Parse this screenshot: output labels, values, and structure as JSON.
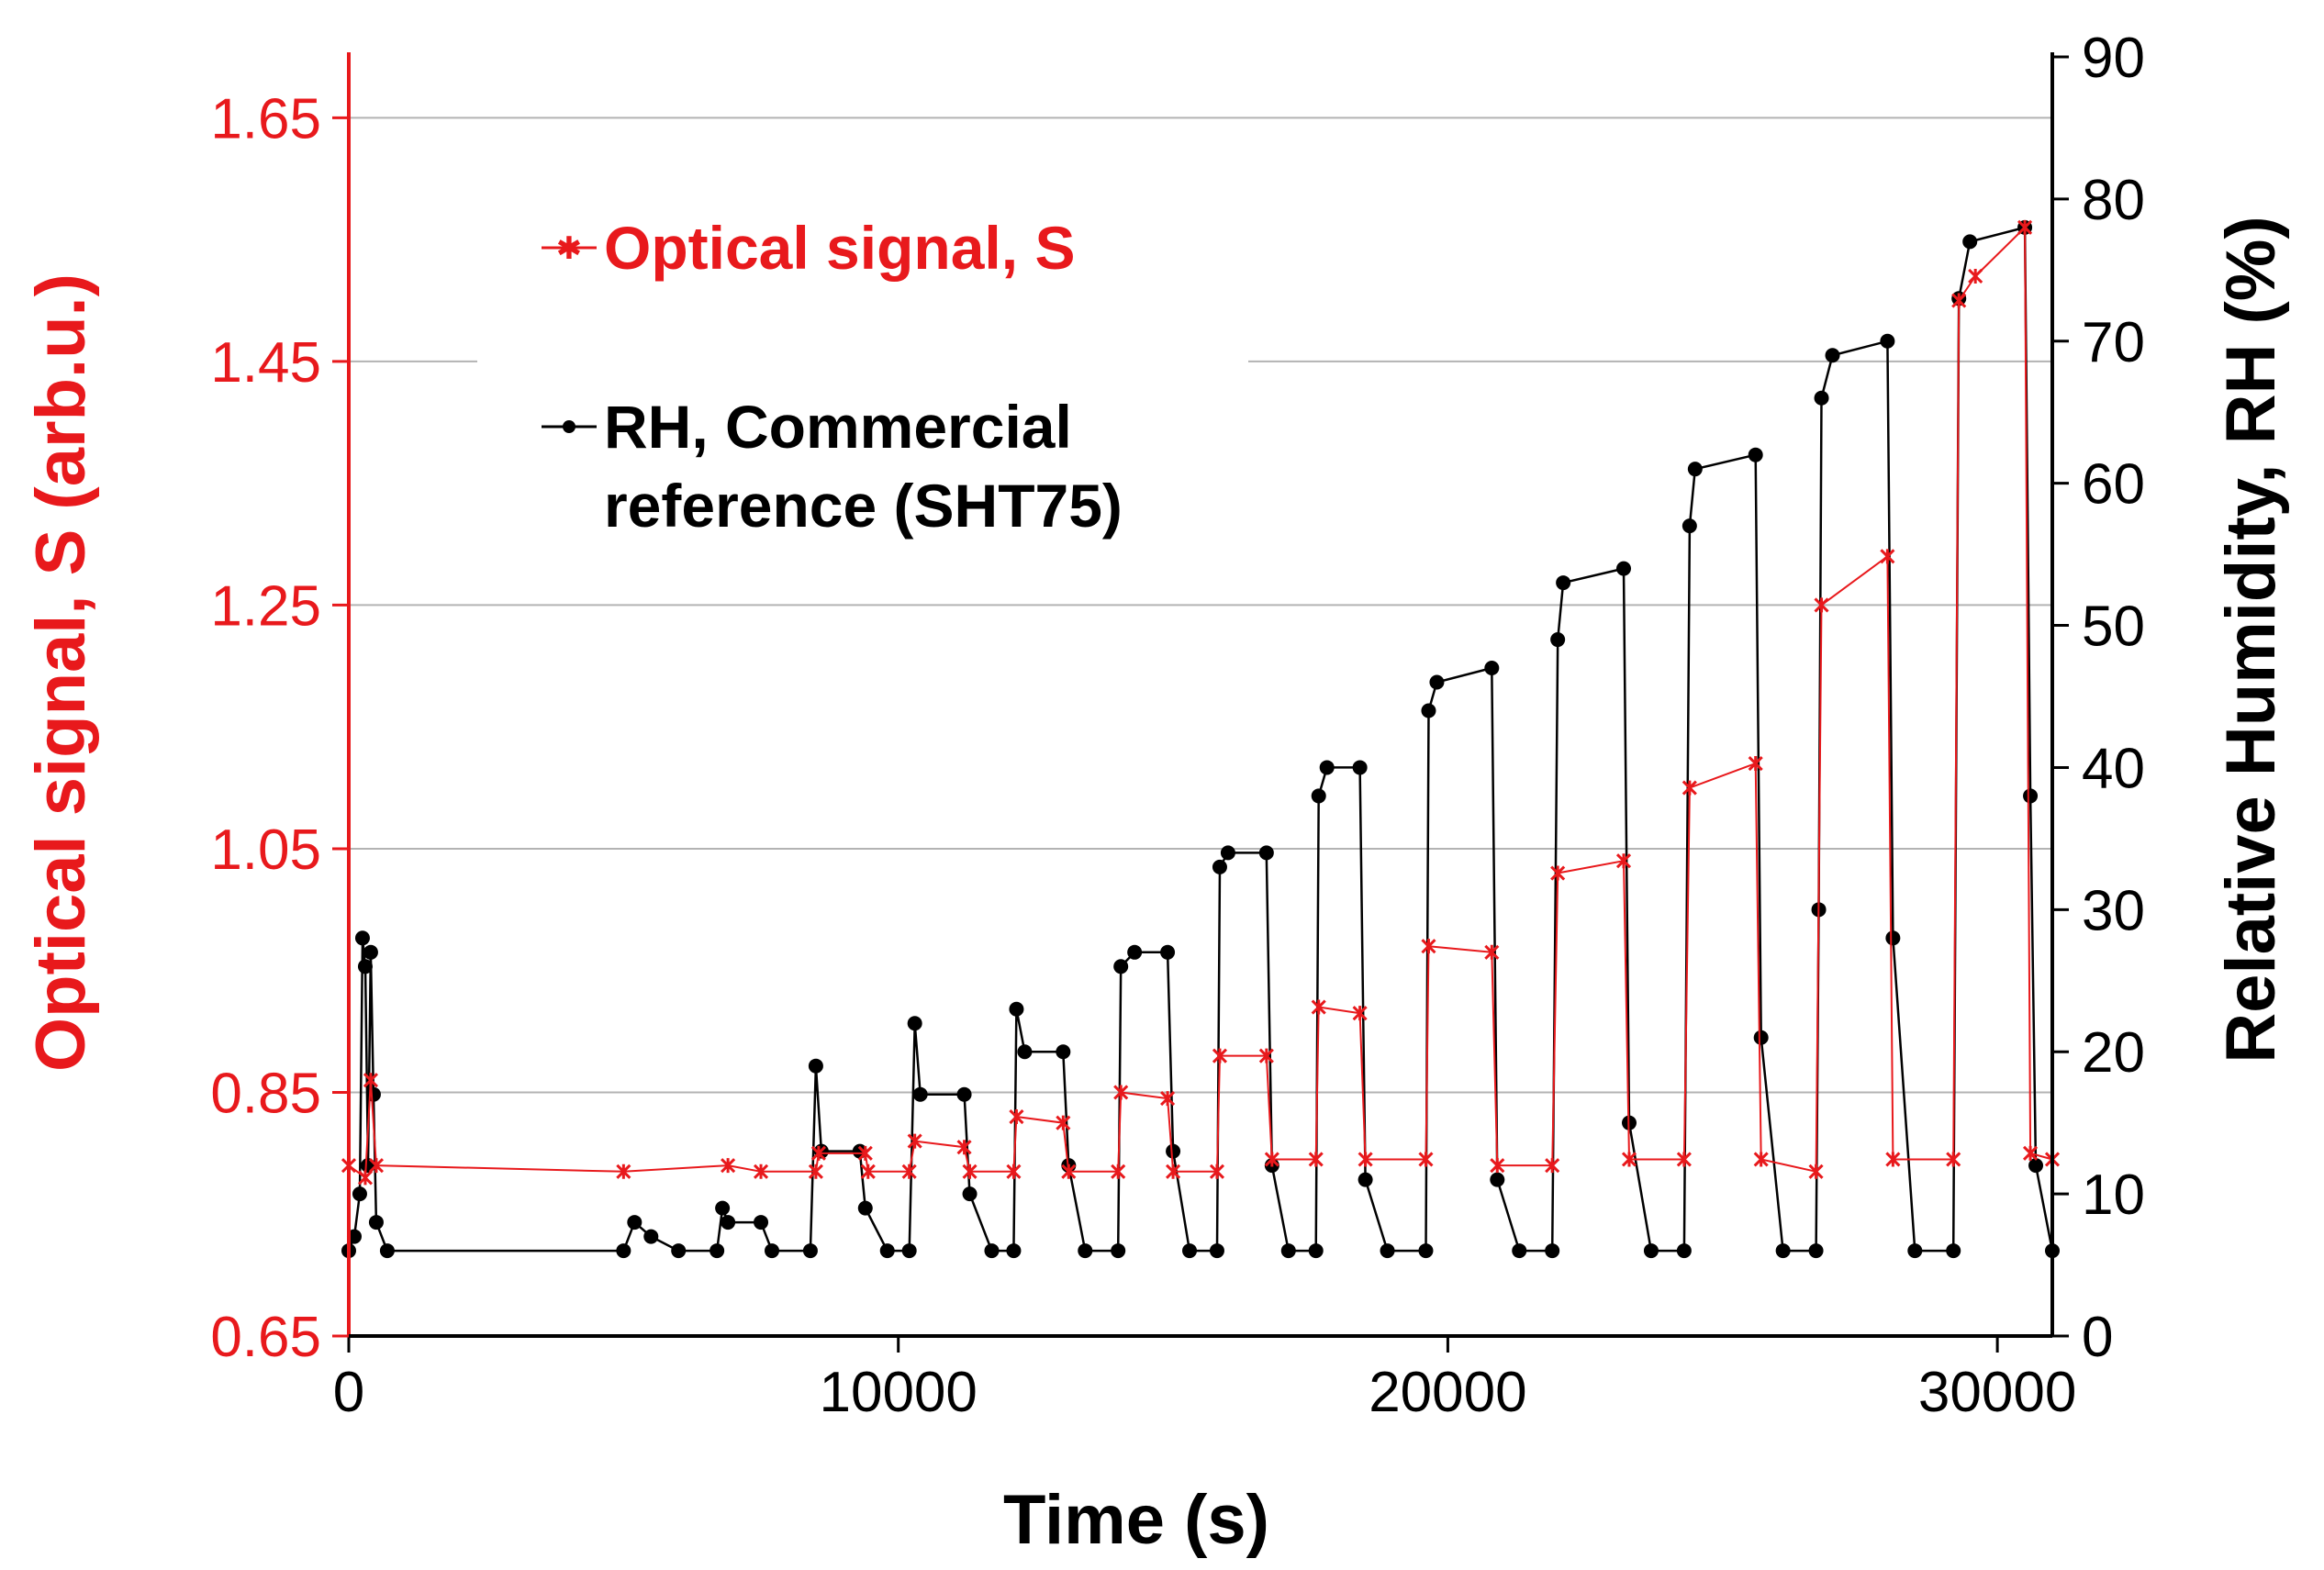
{
  "chart_data": {
    "type": "line",
    "title": "",
    "xlabel": "Time (s)",
    "ylabel_left": "Optical signal, S (arb.u.)",
    "ylabel_right": "Relative Humidity, RH (%)",
    "xlim": [
      0,
      31000
    ],
    "ylim_left": [
      0.65,
      1.7
    ],
    "ylim_right": [
      0,
      90
    ],
    "x_ticks": [
      "0",
      "10000",
      "20000",
      "30000"
    ],
    "x_tick_values": [
      0,
      10000,
      20000,
      30000
    ],
    "y_left_ticks": [
      "0.65",
      "0.85",
      "1.05",
      "1.25",
      "1.45",
      "1.65"
    ],
    "y_left_tick_values": [
      0.65,
      0.85,
      1.05,
      1.25,
      1.45,
      1.65
    ],
    "y_right_ticks": [
      "0",
      "10",
      "20",
      "30",
      "40",
      "50",
      "60",
      "70",
      "80",
      "90"
    ],
    "y_right_tick_values": [
      0,
      10,
      20,
      30,
      40,
      50,
      60,
      70,
      80,
      90
    ],
    "grid": true,
    "legend": {
      "placement": "top-left",
      "entries": [
        {
          "label": "Optical signal, S",
          "series": "optical"
        },
        {
          "label": "RH, Commercial\nreference (SHT75)",
          "series": "rh"
        }
      ]
    },
    "colors": {
      "optical": "#e8191c",
      "rh": "#000000",
      "axis_left": "#e8191c",
      "axis_right": "#000000",
      "grid": "#b3b3b3"
    },
    "series": [
      {
        "name": "RH, Commercial reference (SHT75)",
        "axis": "right",
        "points": [
          [
            0,
            6
          ],
          [
            100,
            7
          ],
          [
            200,
            10
          ],
          [
            250,
            28
          ],
          [
            300,
            26
          ],
          [
            350,
            12
          ],
          [
            400,
            27
          ],
          [
            450,
            17
          ],
          [
            500,
            8
          ],
          [
            700,
            6
          ],
          [
            5000,
            6
          ],
          [
            5200,
            8
          ],
          [
            5500,
            7
          ],
          [
            6000,
            6
          ],
          [
            6700,
            6
          ],
          [
            6800,
            9
          ],
          [
            6900,
            8
          ],
          [
            7500,
            8
          ],
          [
            7700,
            6
          ],
          [
            8400,
            6
          ],
          [
            8500,
            19
          ],
          [
            8600,
            13
          ],
          [
            9300,
            13
          ],
          [
            9400,
            9
          ],
          [
            9800,
            6
          ],
          [
            10200,
            6
          ],
          [
            10300,
            22
          ],
          [
            10400,
            17
          ],
          [
            11200,
            17
          ],
          [
            11300,
            10
          ],
          [
            11700,
            6
          ],
          [
            12100,
            6
          ],
          [
            12150,
            23
          ],
          [
            12300,
            20
          ],
          [
            13000,
            20
          ],
          [
            13100,
            12
          ],
          [
            13400,
            6
          ],
          [
            14000,
            6
          ],
          [
            14050,
            26
          ],
          [
            14300,
            27
          ],
          [
            14900,
            27
          ],
          [
            15000,
            13
          ],
          [
            15300,
            6
          ],
          [
            15800,
            6
          ],
          [
            15850,
            33
          ],
          [
            16000,
            34
          ],
          [
            16700,
            34
          ],
          [
            16800,
            12
          ],
          [
            17100,
            6
          ],
          [
            17600,
            6
          ],
          [
            17650,
            38
          ],
          [
            17800,
            40
          ],
          [
            18400,
            40
          ],
          [
            18500,
            11
          ],
          [
            18900,
            6
          ],
          [
            19600,
            6
          ],
          [
            19650,
            44
          ],
          [
            19800,
            46
          ],
          [
            20800,
            47
          ],
          [
            20900,
            11
          ],
          [
            21300,
            6
          ],
          [
            21900,
            6
          ],
          [
            22000,
            49
          ],
          [
            22100,
            53
          ],
          [
            23200,
            54
          ],
          [
            23300,
            15
          ],
          [
            23700,
            6
          ],
          [
            24300,
            6
          ],
          [
            24400,
            57
          ],
          [
            24500,
            61
          ],
          [
            25600,
            62
          ],
          [
            25700,
            21
          ],
          [
            26100,
            6
          ],
          [
            26700,
            6
          ],
          [
            26750,
            30
          ],
          [
            26800,
            66
          ],
          [
            27000,
            69
          ],
          [
            28000,
            70
          ],
          [
            28100,
            28
          ],
          [
            28500,
            6
          ],
          [
            29200,
            6
          ],
          [
            29300,
            73
          ],
          [
            29500,
            77
          ],
          [
            30500,
            78
          ],
          [
            30600,
            38
          ],
          [
            30700,
            12
          ],
          [
            31000,
            6
          ]
        ]
      },
      {
        "name": "Optical signal, S",
        "axis": "left",
        "points": [
          [
            0,
            0.79
          ],
          [
            300,
            0.78
          ],
          [
            400,
            0.86
          ],
          [
            500,
            0.79
          ],
          [
            5000,
            0.785
          ],
          [
            6900,
            0.79
          ],
          [
            7500,
            0.785
          ],
          [
            8500,
            0.785
          ],
          [
            8550,
            0.8
          ],
          [
            9400,
            0.8
          ],
          [
            9450,
            0.785
          ],
          [
            10200,
            0.785
          ],
          [
            10300,
            0.81
          ],
          [
            11200,
            0.805
          ],
          [
            11300,
            0.785
          ],
          [
            12100,
            0.785
          ],
          [
            12150,
            0.83
          ],
          [
            13000,
            0.825
          ],
          [
            13100,
            0.785
          ],
          [
            14000,
            0.785
          ],
          [
            14050,
            0.85
          ],
          [
            14900,
            0.845
          ],
          [
            15000,
            0.785
          ],
          [
            15800,
            0.785
          ],
          [
            15850,
            0.88
          ],
          [
            16700,
            0.88
          ],
          [
            16800,
            0.795
          ],
          [
            17600,
            0.795
          ],
          [
            17650,
            0.92
          ],
          [
            18400,
            0.915
          ],
          [
            18500,
            0.795
          ],
          [
            19600,
            0.795
          ],
          [
            19650,
            0.97
          ],
          [
            20800,
            0.965
          ],
          [
            20900,
            0.79
          ],
          [
            21900,
            0.79
          ],
          [
            22000,
            1.03
          ],
          [
            23200,
            1.04
          ],
          [
            23300,
            0.795
          ],
          [
            24300,
            0.795
          ],
          [
            24400,
            1.1
          ],
          [
            25600,
            1.12
          ],
          [
            25700,
            0.795
          ],
          [
            26700,
            0.785
          ],
          [
            26800,
            1.25
          ],
          [
            28000,
            1.29
          ],
          [
            28100,
            0.795
          ],
          [
            29200,
            0.795
          ],
          [
            29300,
            1.5
          ],
          [
            29600,
            1.52
          ],
          [
            30500,
            1.56
          ],
          [
            30600,
            0.8
          ],
          [
            31000,
            0.795
          ]
        ]
      }
    ]
  }
}
